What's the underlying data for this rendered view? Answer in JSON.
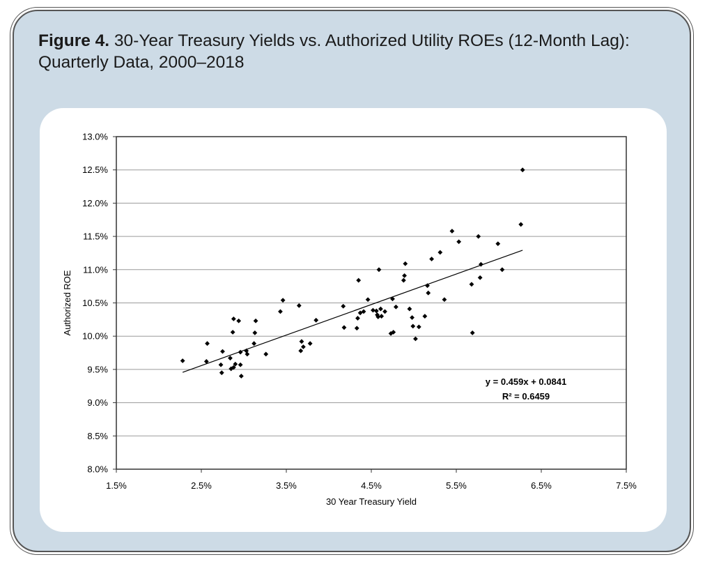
{
  "figure": {
    "label": "Figure 4.",
    "title": "30-Year Treasury Yields vs. Authorized Utility ROEs (12-Month Lag): Quarterly Data, 2000–2018"
  },
  "chart_data": {
    "type": "scatter",
    "xlabel": "30 Year Treasury Yield",
    "ylabel": "Authorized ROE",
    "xlim": [
      1.5,
      7.5
    ],
    "ylim": [
      8.0,
      13.0
    ],
    "x_ticks": [
      "1.5%",
      "2.5%",
      "3.5%",
      "4.5%",
      "5.5%",
      "6.5%",
      "7.5%"
    ],
    "y_ticks": [
      "13.0%",
      "12.5%",
      "12.0%",
      "11.5%",
      "11.0%",
      "10.5%",
      "10.0%",
      "9.5%",
      "9.0%",
      "8.5%",
      "8.0%"
    ],
    "grid": "horizontal",
    "marker_color": "#000000",
    "trendline": {
      "x_start": 2.28,
      "x_end": 6.28,
      "slope": 0.459,
      "intercept": 0.0841,
      "equation": "y = 0.459x + 0.0841",
      "r_squared": "R² = 0.6459"
    },
    "points": [
      [
        2.28,
        9.63
      ],
      [
        2.56,
        9.62
      ],
      [
        2.57,
        9.89
      ],
      [
        2.73,
        9.57
      ],
      [
        2.74,
        9.45
      ],
      [
        2.75,
        9.77
      ],
      [
        2.84,
        9.67
      ],
      [
        2.85,
        9.51
      ],
      [
        2.87,
        10.06
      ],
      [
        2.88,
        9.53
      ],
      [
        2.88,
        10.26
      ],
      [
        2.9,
        9.58
      ],
      [
        2.94,
        10.23
      ],
      [
        2.96,
        9.57
      ],
      [
        2.96,
        9.76
      ],
      [
        2.97,
        9.4
      ],
      [
        3.03,
        9.78
      ],
      [
        3.04,
        9.73
      ],
      [
        3.12,
        9.89
      ],
      [
        3.13,
        10.05
      ],
      [
        3.14,
        10.23
      ],
      [
        3.26,
        9.73
      ],
      [
        3.43,
        10.37
      ],
      [
        3.46,
        10.54
      ],
      [
        3.65,
        10.46
      ],
      [
        3.67,
        9.78
      ],
      [
        3.68,
        9.92
      ],
      [
        3.7,
        9.84
      ],
      [
        3.78,
        9.89
      ],
      [
        3.85,
        10.24
      ],
      [
        4.17,
        10.45
      ],
      [
        4.18,
        10.13
      ],
      [
        4.33,
        10.12
      ],
      [
        4.34,
        10.27
      ],
      [
        4.35,
        10.84
      ],
      [
        4.37,
        10.35
      ],
      [
        4.41,
        10.37
      ],
      [
        4.46,
        10.55
      ],
      [
        4.52,
        10.39
      ],
      [
        4.56,
        10.38
      ],
      [
        4.57,
        10.32
      ],
      [
        4.58,
        10.29
      ],
      [
        4.59,
        11.0
      ],
      [
        4.61,
        10.41
      ],
      [
        4.62,
        10.3
      ],
      [
        4.66,
        10.37
      ],
      [
        4.73,
        10.04
      ],
      [
        4.75,
        10.56
      ],
      [
        4.76,
        10.06
      ],
      [
        4.79,
        10.44
      ],
      [
        4.88,
        10.84
      ],
      [
        4.89,
        10.91
      ],
      [
        4.9,
        11.09
      ],
      [
        4.95,
        10.41
      ],
      [
        4.98,
        10.28
      ],
      [
        4.99,
        10.15
      ],
      [
        5.02,
        9.96
      ],
      [
        5.06,
        10.14
      ],
      [
        5.13,
        10.3
      ],
      [
        5.16,
        10.76
      ],
      [
        5.17,
        10.65
      ],
      [
        5.21,
        11.16
      ],
      [
        5.31,
        11.26
      ],
      [
        5.36,
        10.55
      ],
      [
        5.45,
        11.58
      ],
      [
        5.53,
        11.42
      ],
      [
        5.68,
        10.78
      ],
      [
        5.69,
        10.05
      ],
      [
        5.76,
        11.5
      ],
      [
        5.78,
        10.88
      ],
      [
        5.79,
        11.08
      ],
      [
        5.99,
        11.39
      ],
      [
        6.04,
        11.0
      ],
      [
        6.26,
        11.68
      ],
      [
        6.28,
        12.5
      ]
    ]
  }
}
